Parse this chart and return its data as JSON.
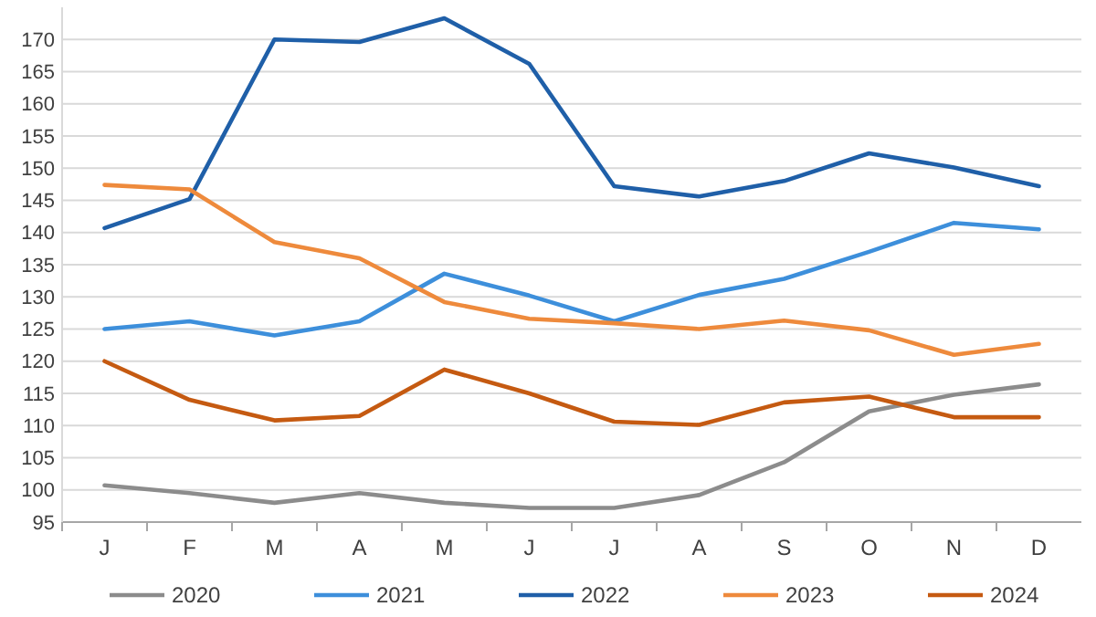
{
  "chart_data": {
    "type": "line",
    "categories": [
      "J",
      "F",
      "M",
      "A",
      "M",
      "J",
      "J",
      "A",
      "S",
      "O",
      "N",
      "D"
    ],
    "ylim": [
      95,
      175
    ],
    "yticks": [
      95,
      100,
      105,
      110,
      115,
      120,
      125,
      130,
      135,
      140,
      145,
      150,
      155,
      160,
      165,
      170
    ],
    "grid": "y",
    "legend": "bottom",
    "marker": "none",
    "line_style": "solid",
    "series": [
      {
        "name": "2020",
        "color": "#8c8c8c",
        "values": [
          100.7,
          99.5,
          98,
          99.5,
          98,
          97.2,
          97.2,
          99.2,
          104.3,
          112.2,
          114.8,
          116.4
        ]
      },
      {
        "name": "2021",
        "color": "#3d8fdb",
        "values": [
          125,
          126.2,
          124,
          126.2,
          133.6,
          130.2,
          126.2,
          130.3,
          132.8,
          137,
          141.5,
          140.5
        ]
      },
      {
        "name": "2022",
        "color": "#1f5fa8",
        "values": [
          140.7,
          145.2,
          170,
          169.6,
          173.3,
          166.2,
          147.2,
          145.6,
          148,
          152.3,
          150.1,
          147.2
        ]
      },
      {
        "name": "2023",
        "color": "#ee8a3c",
        "values": [
          147.4,
          146.7,
          138.5,
          136,
          129.2,
          126.6,
          125.9,
          125,
          126.3,
          124.8,
          121,
          122.7
        ]
      },
      {
        "name": "2024",
        "color": "#c55a11",
        "values": [
          120,
          114,
          110.8,
          111.5,
          118.7,
          115,
          110.6,
          110.1,
          113.6,
          114.5,
          111.3,
          111.3
        ]
      }
    ]
  }
}
